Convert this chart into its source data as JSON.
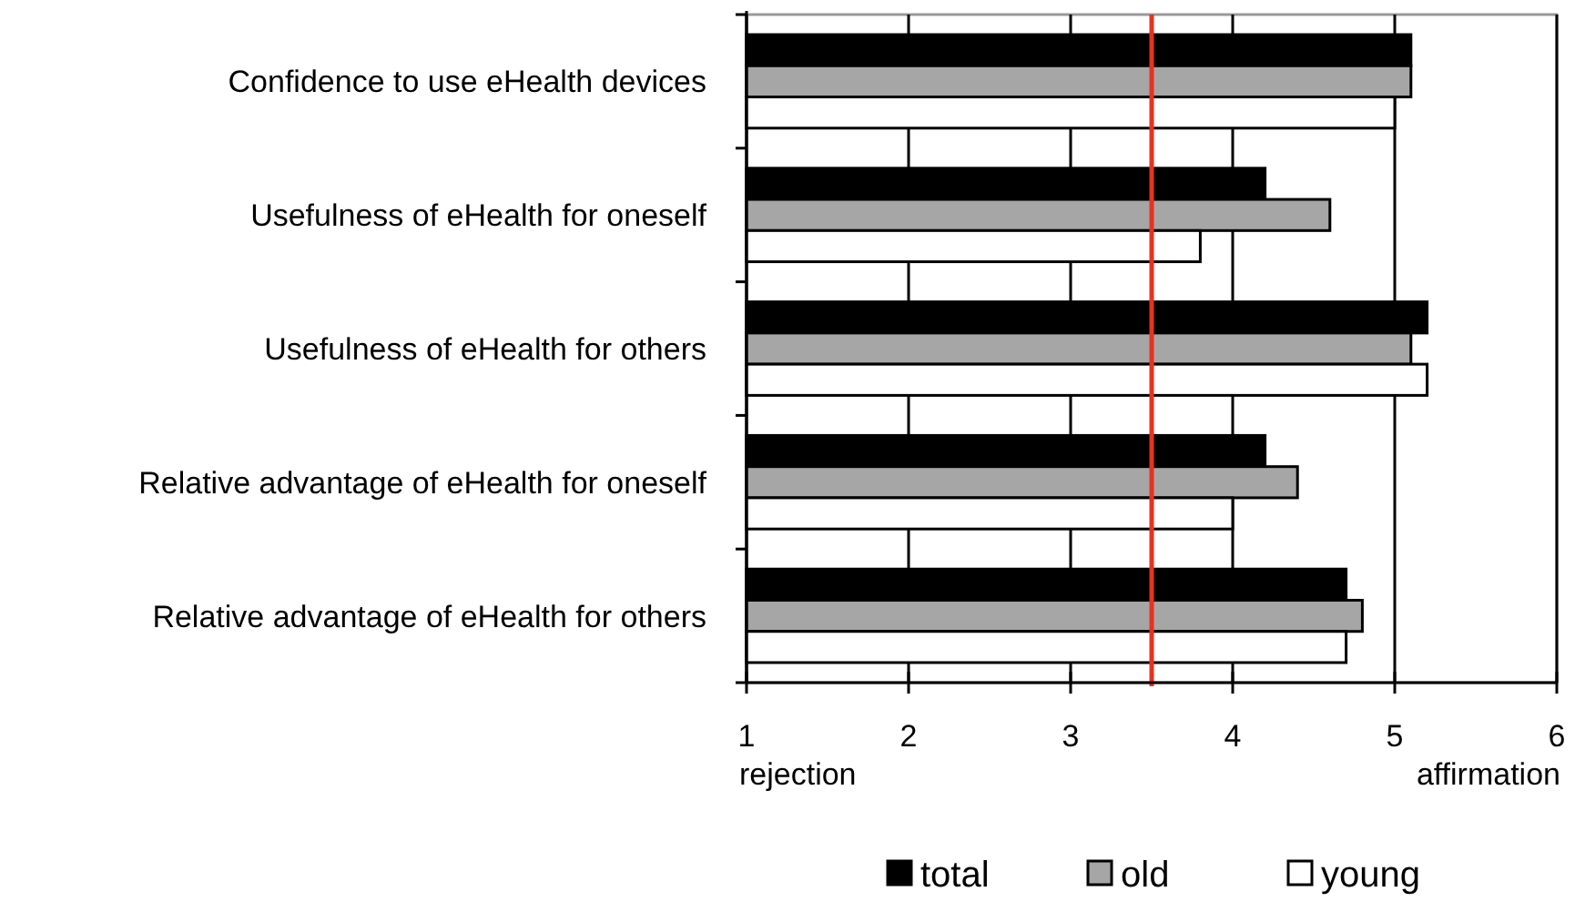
{
  "chart_data": {
    "type": "bar",
    "orientation": "horizontal",
    "categories": [
      "Confidence to use eHealth devices",
      "Usefulness of eHealth for oneself",
      "Usefulness of eHealth for others",
      "Relative advantage of eHealth for oneself",
      "Relative advantage of eHealth for others"
    ],
    "series": [
      {
        "name": "total",
        "color": "#000000",
        "values": [
          5.1,
          4.2,
          5.2,
          4.2,
          4.7
        ]
      },
      {
        "name": "old",
        "color": "#a6a6a6",
        "values": [
          5.1,
          4.6,
          5.1,
          4.4,
          4.8
        ]
      },
      {
        "name": "young",
        "color": "#ffffff",
        "values": [
          5.0,
          3.8,
          5.2,
          4.0,
          4.7
        ]
      }
    ],
    "xlim": [
      1,
      6
    ],
    "xticks": [
      1,
      2,
      3,
      4,
      5,
      6
    ],
    "grid": "x",
    "legend": "bottom",
    "ref_lines": [
      {
        "axis": "x",
        "value": 3.5,
        "color": "#e8321e"
      }
    ],
    "annotations": [
      "rejection",
      "affirmation"
    ]
  }
}
